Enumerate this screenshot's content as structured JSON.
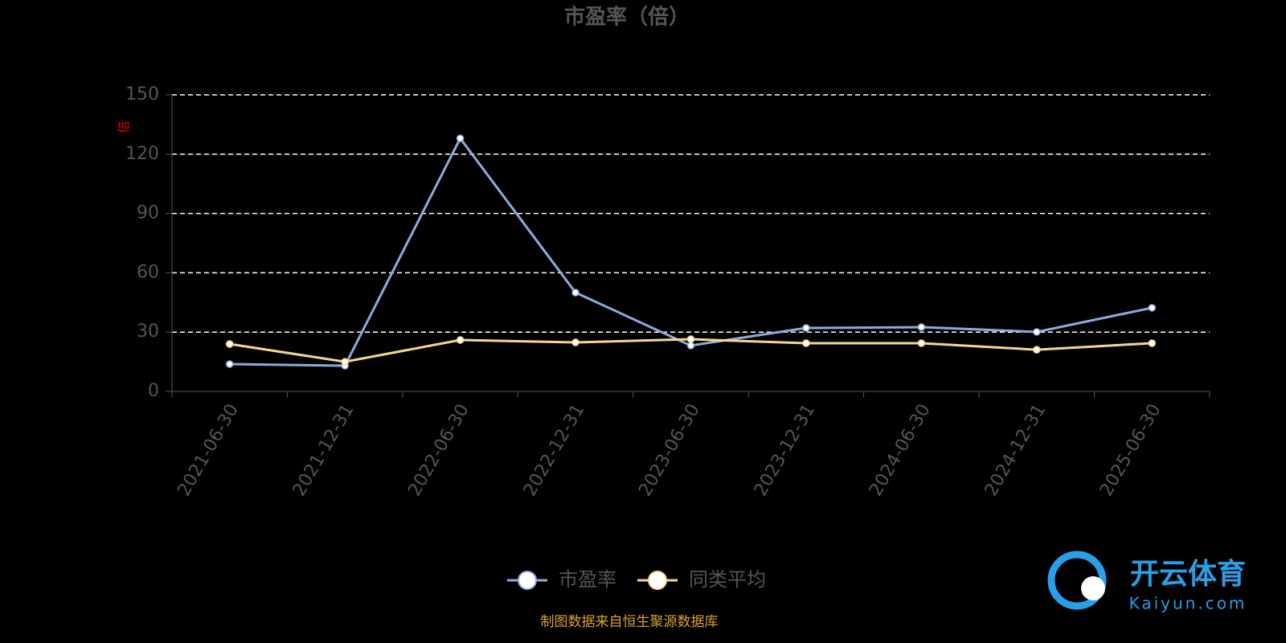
{
  "chart_data": {
    "type": "line",
    "title": "市盈率（倍）",
    "y_label": "倍",
    "categories": [
      "2021-06-30",
      "2021-12-31",
      "2022-06-30",
      "2022-12-31",
      "2023-06-30",
      "2023-12-31",
      "2024-06-30",
      "2024-12-31",
      "2025-06-30"
    ],
    "series": [
      {
        "name": "市盈率",
        "color": "#8eaadb",
        "values": [
          13.8,
          13.0,
          128.0,
          50.0,
          23.2,
          32.1,
          32.5,
          30.1,
          42.3
        ]
      },
      {
        "name": "同类平均",
        "color": "#f9d68f",
        "values": [
          24.0,
          15.0,
          26.0,
          24.8,
          26.4,
          24.4,
          24.4,
          21.1,
          24.4
        ]
      }
    ],
    "ylim": [
      0,
      150
    ],
    "yticks": [
      0,
      30,
      60,
      90,
      120,
      150
    ],
    "grid": true,
    "legend": "bottom",
    "source": "制图数据来自恒生聚源数据库"
  },
  "watermark": {
    "name": "开云体育",
    "url": "Kaiyun.com"
  }
}
